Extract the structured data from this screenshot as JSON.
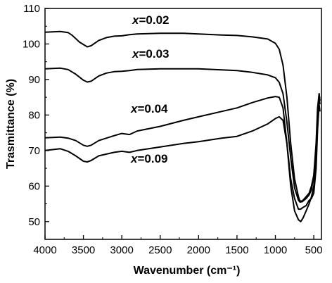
{
  "chart_data": {
    "type": "line",
    "xlabel": "Wavenumber (cm⁻¹)",
    "ylabel": "Trasmittance (%)",
    "xlim": [
      4000,
      400
    ],
    "ylim": [
      45,
      110
    ],
    "x_reversed": true,
    "grid": false,
    "xticks": [
      4000,
      3500,
      3000,
      2500,
      2000,
      1500,
      1000,
      500
    ],
    "yticks": [
      50,
      60,
      70,
      80,
      90,
      100,
      110
    ],
    "line_color": "#000000",
    "series": [
      {
        "name": "x=0.02",
        "x": [
          4000,
          3800,
          3700,
          3650,
          3550,
          3450,
          3400,
          3300,
          3200,
          3100,
          3000,
          2900,
          2800,
          2500,
          2200,
          2000,
          1700,
          1500,
          1300,
          1100,
          1000,
          950,
          900,
          850,
          800,
          750,
          700,
          680,
          650,
          600,
          560,
          530,
          500,
          470,
          450,
          430,
          420
        ],
        "y": [
          103.3,
          103.5,
          103.2,
          102.5,
          100.5,
          99.2,
          99.5,
          101.0,
          101.8,
          102.2,
          102.3,
          102.6,
          102.8,
          103.0,
          103.0,
          102.8,
          102.5,
          102.4,
          102.0,
          101.4,
          100.2,
          98.5,
          94.0,
          85.0,
          72.0,
          62.0,
          57.0,
          55.8,
          55.8,
          57.0,
          58.0,
          60.0,
          63.0,
          70.0,
          80.0,
          86.0,
          84.0
        ]
      },
      {
        "name": "x=0.03",
        "x": [
          4000,
          3800,
          3700,
          3600,
          3500,
          3450,
          3400,
          3300,
          3200,
          3100,
          3000,
          2900,
          2800,
          2500,
          2200,
          2000,
          1700,
          1500,
          1300,
          1100,
          1000,
          950,
          900,
          850,
          800,
          750,
          700,
          680,
          650,
          600,
          560,
          530,
          500,
          470,
          450,
          430,
          420
        ],
        "y": [
          93.0,
          93.2,
          92.8,
          91.5,
          89.8,
          89.3,
          89.5,
          91.0,
          91.8,
          92.2,
          92.3,
          92.5,
          92.8,
          93.0,
          93.0,
          93.0,
          92.7,
          92.5,
          92.0,
          91.3,
          90.5,
          89.2,
          86.0,
          78.0,
          68.0,
          59.5,
          56.0,
          55.5,
          55.6,
          56.5,
          57.5,
          59.0,
          63.0,
          72.0,
          82.0,
          86.0,
          84.0
        ]
      },
      {
        "name": "x=0.04",
        "x": [
          4000,
          3800,
          3700,
          3600,
          3500,
          3450,
          3400,
          3300,
          3200,
          3100,
          3000,
          2900,
          2800,
          2500,
          2200,
          2000,
          1700,
          1500,
          1300,
          1100,
          1000,
          950,
          900,
          850,
          800,
          750,
          700,
          670,
          640,
          600,
          560,
          530,
          500,
          470,
          450,
          430,
          420
        ],
        "y": [
          73.6,
          73.8,
          73.5,
          72.8,
          71.5,
          71.2,
          71.5,
          72.8,
          73.5,
          74.2,
          74.8,
          74.5,
          75.5,
          76.8,
          78.5,
          79.5,
          81.0,
          82.0,
          83.5,
          84.8,
          85.2,
          85.0,
          82.0,
          72.0,
          60.0,
          53.0,
          50.5,
          50.0,
          51.0,
          53.0,
          55.0,
          57.0,
          60.0,
          67.0,
          77.0,
          85.0,
          83.0
        ]
      },
      {
        "name": "x=0.09",
        "x": [
          4000,
          3800,
          3700,
          3600,
          3500,
          3450,
          3400,
          3300,
          3200,
          3100,
          3000,
          2900,
          2800,
          2500,
          2200,
          2000,
          1700,
          1500,
          1300,
          1100,
          1000,
          950,
          900,
          850,
          800,
          750,
          700,
          670,
          640,
          600,
          560,
          530,
          500,
          470,
          450,
          430,
          420
        ],
        "y": [
          70.0,
          70.5,
          69.8,
          68.5,
          67.0,
          66.8,
          67.2,
          68.5,
          69.0,
          69.5,
          69.8,
          69.5,
          70.0,
          71.0,
          72.0,
          72.5,
          73.5,
          74.0,
          75.5,
          77.5,
          79.0,
          79.5,
          78.5,
          72.0,
          62.0,
          56.5,
          53.5,
          53.5,
          54.0,
          54.5,
          56.0,
          56.5,
          58.0,
          65.0,
          76.0,
          83.0,
          81.0
        ]
      }
    ]
  }
}
